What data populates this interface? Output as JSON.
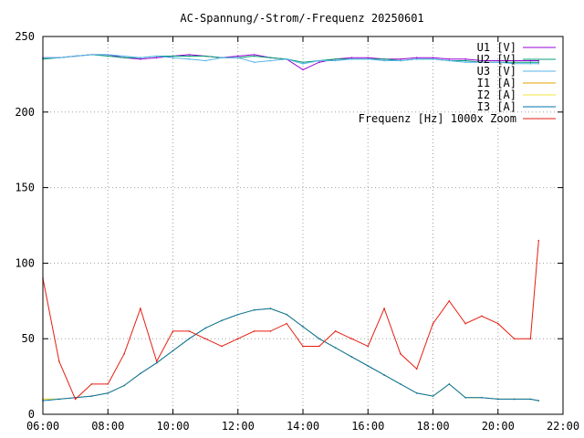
{
  "chart_data": {
    "type": "line",
    "title": "AC-Spannung/-Strom/-Frequenz 20250601",
    "xlabel": "",
    "ylabel": "",
    "xlim": [
      "06:00",
      "22:00"
    ],
    "ylim": [
      0,
      250
    ],
    "x_ticks": [
      "06:00",
      "08:00",
      "10:00",
      "12:00",
      "14:00",
      "16:00",
      "18:00",
      "20:00",
      "22:00"
    ],
    "y_ticks": [
      "0",
      "50",
      "100",
      "150",
      "200",
      "250"
    ],
    "grid": true,
    "legend_position": "top-right",
    "x": [
      "06:00",
      "06:30",
      "07:00",
      "07:30",
      "08:00",
      "08:30",
      "09:00",
      "09:30",
      "10:00",
      "10:30",
      "11:00",
      "11:30",
      "12:00",
      "12:30",
      "13:00",
      "13:30",
      "14:00",
      "14:30",
      "15:00",
      "15:30",
      "16:00",
      "16:30",
      "17:00",
      "17:30",
      "18:00",
      "18:30",
      "19:00",
      "19:30",
      "20:00",
      "20:30",
      "21:00",
      "21:15"
    ],
    "series": [
      {
        "name": "U1 [V]",
        "color": "#9400d3",
        "values": [
          236,
          236,
          237,
          238,
          238,
          236,
          235,
          236,
          237,
          238,
          237,
          236,
          237,
          238,
          236,
          235,
          228,
          233,
          235,
          236,
          236,
          235,
          235,
          236,
          236,
          235,
          235,
          234,
          234,
          234,
          234,
          234
        ]
      },
      {
        "name": "U2 [V]",
        "color": "#009e73",
        "values": [
          235,
          236,
          237,
          238,
          237,
          236,
          236,
          237,
          237,
          237,
          237,
          236,
          236,
          237,
          236,
          235,
          233,
          234,
          235,
          235,
          235,
          235,
          234,
          235,
          235,
          234,
          234,
          233,
          233,
          233,
          233,
          233
        ]
      },
      {
        "name": "U3 [V]",
        "color": "#56b4e9",
        "values": [
          236,
          236,
          237,
          238,
          238,
          237,
          236,
          237,
          236,
          235,
          234,
          236,
          236,
          233,
          234,
          235,
          232,
          234,
          234,
          235,
          235,
          234,
          234,
          235,
          235,
          234,
          233,
          233,
          233,
          232,
          232,
          232
        ]
      },
      {
        "name": "I1 [A]",
        "color": "#e69f00",
        "values": [
          10,
          10,
          11,
          12,
          14,
          19,
          27,
          34,
          42,
          50,
          57,
          62,
          66,
          69,
          70,
          66,
          58,
          50,
          44,
          38,
          32,
          26,
          20,
          14,
          12,
          20,
          11,
          11,
          10,
          10,
          10,
          9
        ]
      },
      {
        "name": "I2 [A]",
        "color": "#f0e442",
        "values": [
          10,
          10,
          11,
          12,
          14,
          19,
          27,
          34,
          42,
          50,
          57,
          62,
          66,
          69,
          70,
          66,
          58,
          50,
          44,
          38,
          32,
          26,
          20,
          14,
          12,
          20,
          11,
          11,
          10,
          10,
          10,
          9
        ]
      },
      {
        "name": "I3 [A]",
        "color": "#0072b2",
        "values": [
          9,
          10,
          11,
          12,
          14,
          19,
          27,
          34,
          42,
          50,
          57,
          62,
          66,
          69,
          70,
          66,
          58,
          50,
          44,
          38,
          32,
          26,
          20,
          14,
          12,
          20,
          11,
          11,
          10,
          10,
          10,
          9
        ]
      },
      {
        "name": "Frequenz [Hz] 1000x Zoom",
        "color": "#e51e10",
        "values": [
          90,
          35,
          10,
          20,
          20,
          40,
          70,
          35,
          55,
          55,
          50,
          45,
          50,
          55,
          55,
          60,
          45,
          45,
          55,
          50,
          45,
          70,
          40,
          30,
          60,
          75,
          60,
          65,
          60,
          50,
          50,
          115
        ]
      }
    ]
  }
}
